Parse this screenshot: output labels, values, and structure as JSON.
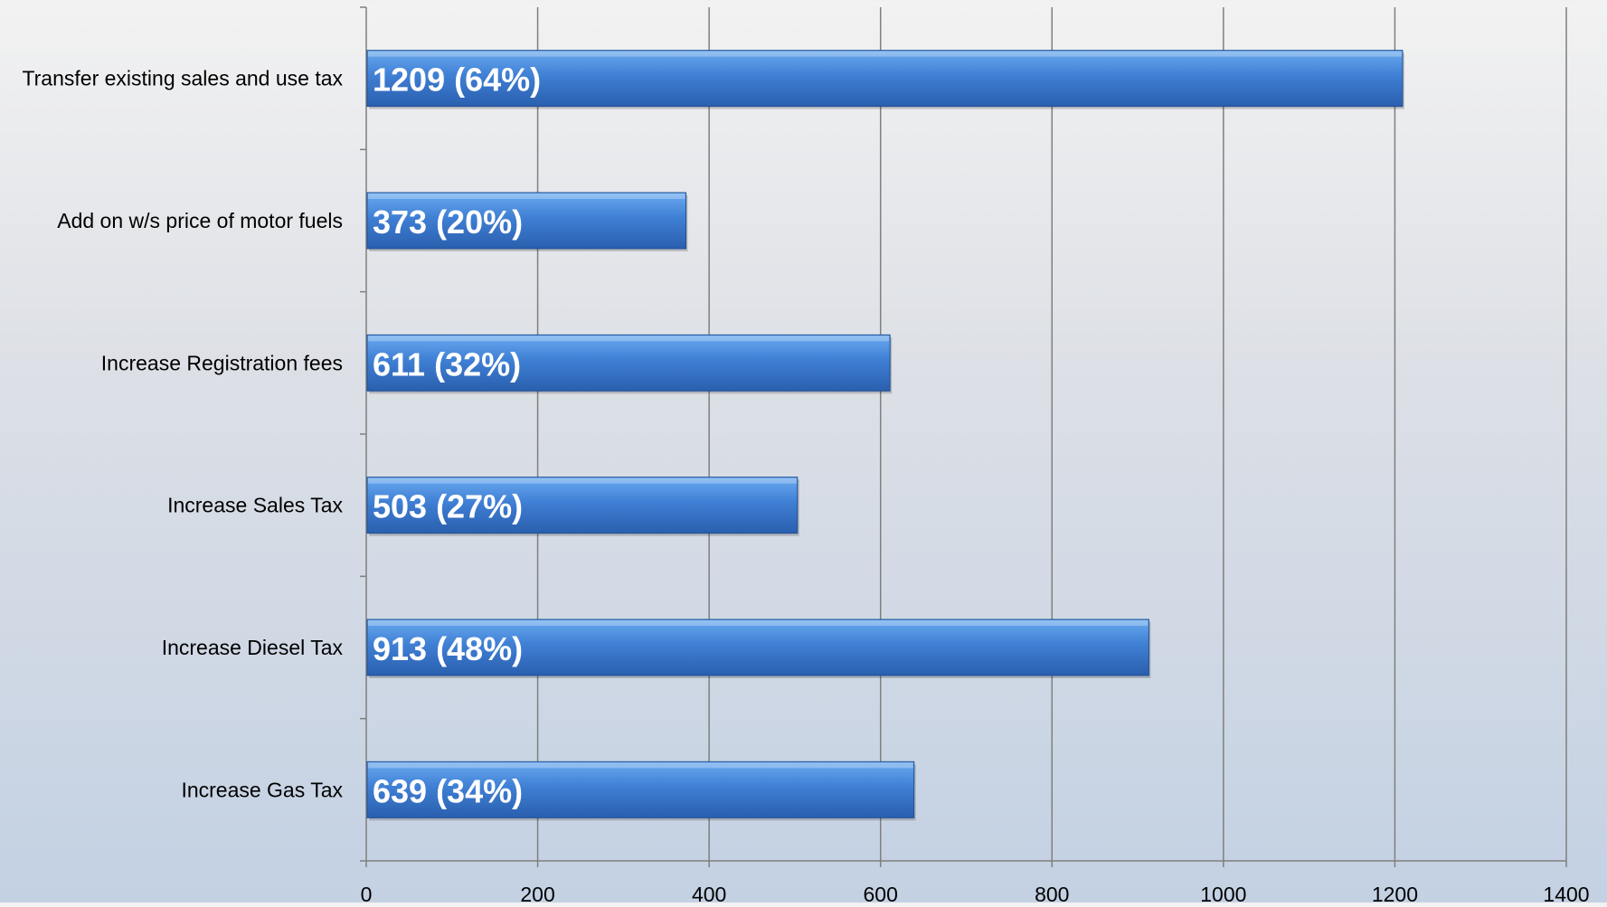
{
  "chart_data": {
    "type": "bar",
    "orientation": "horizontal",
    "categories": [
      "Transfer existing sales and use tax",
      "Add on w/s price of motor fuels",
      "Increase Registration fees",
      "Increase Sales Tax",
      "Increase Diesel Tax",
      "Increase Gas Tax"
    ],
    "values": [
      1209,
      373,
      611,
      503,
      913,
      639
    ],
    "data_labels": [
      "1209 (64%)",
      "373 (20%)",
      "611 (32%)",
      "503 (27%)",
      "913 (48%)",
      "639 (34%)"
    ],
    "x_ticks": [
      "0",
      "200",
      "400",
      "600",
      "800",
      "1000",
      "1200",
      "1400"
    ],
    "xlim": [
      0,
      1400
    ],
    "grid": "vertical",
    "legend": "none",
    "title": "",
    "xlabel": "",
    "ylabel": "",
    "colors": {
      "bar_top": "#6aaaf0",
      "bar_mid": "#3f7fd4",
      "bar_bottom": "#2a5fae",
      "bar_edge": "#1f4f94",
      "gridline": "#7f7f7f",
      "axis": "#7f7f7f"
    }
  }
}
